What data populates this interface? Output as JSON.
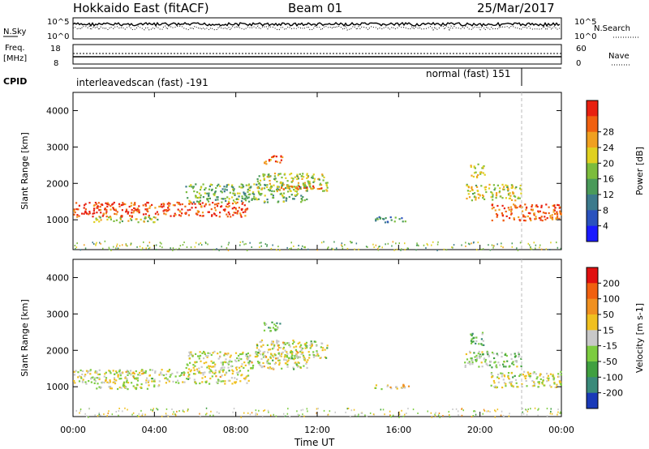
{
  "header": {
    "title": "Hokkaido East (fitACF)",
    "beam": "Beam 01",
    "date": "25/Mar/2017"
  },
  "strip_labels": {
    "nsky": "N.Sky",
    "nsky_ticks": [
      "10^5",
      "10^0"
    ],
    "nsearch": "N.Search",
    "nsearch_ticks": [
      "10^5",
      "10^0"
    ],
    "freq": "Freq.",
    "freq_unit": "[MHz]",
    "freq_ticks": [
      "18",
      "8"
    ],
    "nave": "Nave",
    "nave_ticks": [
      "60",
      "0"
    ],
    "cpid": "CPID",
    "cpid_left": "interleavedscan (fast) -191",
    "cpid_right": "normal (fast) 151"
  },
  "chart_data": [
    {
      "type": "heatmap",
      "name": "power-panel",
      "ylabel": "Slant Range [km]",
      "x_ticks": [
        "00:00",
        "04:00",
        "08:00",
        "12:00",
        "16:00",
        "20:00",
        "00:00"
      ],
      "x_range_hours": [
        0,
        24
      ],
      "y_ticks": [
        1000,
        2000,
        3000,
        4000
      ],
      "ylim": [
        180,
        4500
      ],
      "colorbar": {
        "label": "Power [dB]",
        "ticks": [
          "4",
          "8",
          "12",
          "16",
          "20",
          "24",
          "28"
        ],
        "colors": [
          "#1a1aff",
          "#2a52be",
          "#3c7a8c",
          "#4a9a5a",
          "#7cbc3c",
          "#e0d020",
          "#f0a020",
          "#f06010",
          "#e82010"
        ]
      },
      "regions": [
        {
          "t0": 0.0,
          "t1": 8.6,
          "r0": 1100,
          "r1": 1500,
          "level": 0.9
        },
        {
          "t0": 1.0,
          "t1": 4.2,
          "r0": 950,
          "r1": 1100,
          "level": 0.55
        },
        {
          "t0": 5.5,
          "t1": 11.5,
          "r0": 1500,
          "r1": 2000,
          "level": 0.45
        },
        {
          "t0": 9.3,
          "t1": 10.3,
          "r0": 2550,
          "r1": 2800,
          "level": 0.8
        },
        {
          "t0": 9.0,
          "t1": 12.5,
          "r0": 1800,
          "r1": 2300,
          "level": 0.55
        },
        {
          "t0": 10.0,
          "t1": 12.3,
          "r0": 1850,
          "r1": 1950,
          "level": 0.85
        },
        {
          "t0": 14.8,
          "t1": 16.5,
          "r0": 950,
          "r1": 1100,
          "level": 0.3
        },
        {
          "t0": 19.2,
          "t1": 22.0,
          "r0": 1550,
          "r1": 2000,
          "level": 0.6
        },
        {
          "t0": 20.5,
          "t1": 24.0,
          "r0": 1000,
          "r1": 1450,
          "level": 0.85
        },
        {
          "t0": 19.5,
          "t1": 20.2,
          "r0": 2150,
          "r1": 2550,
          "level": 0.6
        }
      ]
    },
    {
      "type": "heatmap",
      "name": "velocity-panel",
      "ylabel": "Slant Range [km]",
      "xlabel": "Time UT",
      "x_ticks": [
        "00:00",
        "04:00",
        "08:00",
        "12:00",
        "16:00",
        "20:00",
        "00:00"
      ],
      "x_range_hours": [
        0,
        24
      ],
      "y_ticks": [
        1000,
        2000,
        3000,
        4000
      ],
      "ylim": [
        180,
        4500
      ],
      "colorbar": {
        "label": "Velocity [m s-1]",
        "ticks": [
          "200",
          "100",
          "50",
          "15",
          "-15",
          "-50",
          "-100",
          "-200"
        ],
        "colors": [
          "#1a3ab8",
          "#3a8a7a",
          "#40a040",
          "#7ccc40",
          "#c8c8c8",
          "#f0c020",
          "#f09020",
          "#f06010",
          "#e01010"
        ]
      },
      "regions": [
        {
          "t0": 0.0,
          "t1": 8.6,
          "r0": 1100,
          "r1": 1500,
          "level": 0.5
        },
        {
          "t0": 1.0,
          "t1": 4.2,
          "r0": 950,
          "r1": 1100,
          "level": 0.5
        },
        {
          "t0": 5.5,
          "t1": 11.5,
          "r0": 1500,
          "r1": 2000,
          "level": 0.5
        },
        {
          "t0": 9.3,
          "t1": 10.3,
          "r0": 2550,
          "r1": 2800,
          "level": 0.35
        },
        {
          "t0": 9.0,
          "t1": 12.5,
          "r0": 1800,
          "r1": 2300,
          "level": 0.5
        },
        {
          "t0": 14.8,
          "t1": 16.5,
          "r0": 950,
          "r1": 1100,
          "level": 0.6
        },
        {
          "t0": 19.2,
          "t1": 22.0,
          "r0": 1550,
          "r1": 2000,
          "level": 0.4
        },
        {
          "t0": 20.5,
          "t1": 24.0,
          "r0": 1000,
          "r1": 1450,
          "level": 0.5
        },
        {
          "t0": 19.5,
          "t1": 20.2,
          "r0": 2150,
          "r1": 2550,
          "level": 0.35
        }
      ]
    }
  ]
}
